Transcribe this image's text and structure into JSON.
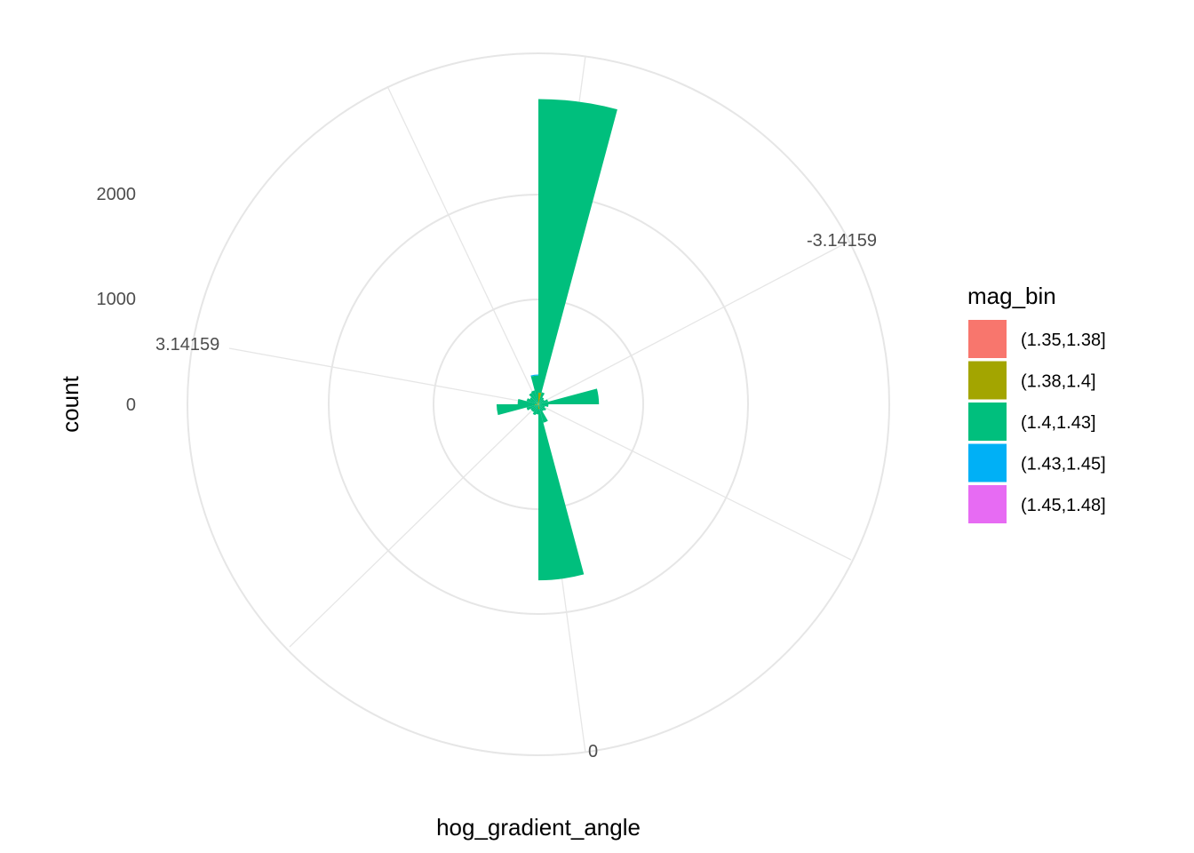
{
  "chart_data": {
    "type": "bar",
    "coord": "polar",
    "xlabel": "hog_gradient_angle",
    "ylabel": "count",
    "angle_ticks": [
      "3.14159",
      "-3.14159",
      "0"
    ],
    "radial_ticks": [
      "0",
      "1000",
      "2000"
    ],
    "radial_tick_values": [
      0,
      1000,
      2000
    ],
    "rlim": [
      0,
      3300
    ],
    "grid": true,
    "legend": {
      "title": "mag_bin",
      "position": "right",
      "entries": [
        {
          "label": "(1.35,1.38]",
          "color": "#F8766D"
        },
        {
          "label": "(1.38,1.4]",
          "color": "#A3A500"
        },
        {
          "label": "(1.4,1.43]",
          "color": "#00BF7D"
        },
        {
          "label": "(1.43,1.45]",
          "color": "#00B0F6"
        },
        {
          "label": "(1.45,1.48]",
          "color": "#E76BF3"
        }
      ]
    },
    "bins": [
      {
        "angle_deg": 7.5,
        "counts": [
          0,
          110,
          2760,
          0,
          0
        ]
      },
      {
        "angle_deg": 22.5,
        "counts": [
          0,
          8,
          110,
          0,
          0
        ]
      },
      {
        "angle_deg": 37.5,
        "counts": [
          0,
          5,
          70,
          0,
          0
        ]
      },
      {
        "angle_deg": 52.5,
        "counts": [
          0,
          5,
          60,
          0,
          0
        ]
      },
      {
        "angle_deg": 67.5,
        "counts": [
          0,
          5,
          90,
          0,
          0
        ]
      },
      {
        "angle_deg": 82.5,
        "counts": [
          0,
          10,
          560,
          0,
          0
        ]
      },
      {
        "angle_deg": 97.5,
        "counts": [
          0,
          5,
          90,
          0,
          0
        ]
      },
      {
        "angle_deg": 112.5,
        "counts": [
          0,
          5,
          60,
          0,
          0
        ]
      },
      {
        "angle_deg": 127.5,
        "counts": [
          0,
          5,
          80,
          0,
          0
        ]
      },
      {
        "angle_deg": 142.5,
        "counts": [
          0,
          5,
          70,
          0,
          0
        ]
      },
      {
        "angle_deg": 157.5,
        "counts": [
          0,
          10,
          170,
          0,
          0
        ]
      },
      {
        "angle_deg": 172.5,
        "counts": [
          0,
          45,
          1610,
          0,
          0
        ]
      },
      {
        "angle_deg": 187.5,
        "counts": [
          0,
          5,
          90,
          0,
          0
        ]
      },
      {
        "angle_deg": 202.5,
        "counts": [
          0,
          5,
          100,
          0,
          0
        ]
      },
      {
        "angle_deg": 217.5,
        "counts": [
          0,
          5,
          80,
          0,
          0
        ]
      },
      {
        "angle_deg": 232.5,
        "counts": [
          0,
          5,
          80,
          0,
          0
        ]
      },
      {
        "angle_deg": 247.5,
        "counts": [
          0,
          5,
          110,
          0,
          0
        ]
      },
      {
        "angle_deg": 262.5,
        "counts": [
          8,
          25,
          360,
          0,
          0
        ]
      },
      {
        "angle_deg": 277.5,
        "counts": [
          0,
          5,
          190,
          0,
          0
        ]
      },
      {
        "angle_deg": 292.5,
        "counts": [
          0,
          5,
          110,
          0,
          0
        ]
      },
      {
        "angle_deg": 307.5,
        "counts": [
          0,
          5,
          90,
          0,
          0
        ]
      },
      {
        "angle_deg": 322.5,
        "counts": [
          5,
          10,
          110,
          0,
          0
        ]
      },
      {
        "angle_deg": 337.5,
        "counts": [
          5,
          20,
          110,
          0,
          0
        ]
      },
      {
        "angle_deg": 352.5,
        "counts": [
          0,
          10,
          260,
          10,
          0
        ]
      }
    ]
  }
}
